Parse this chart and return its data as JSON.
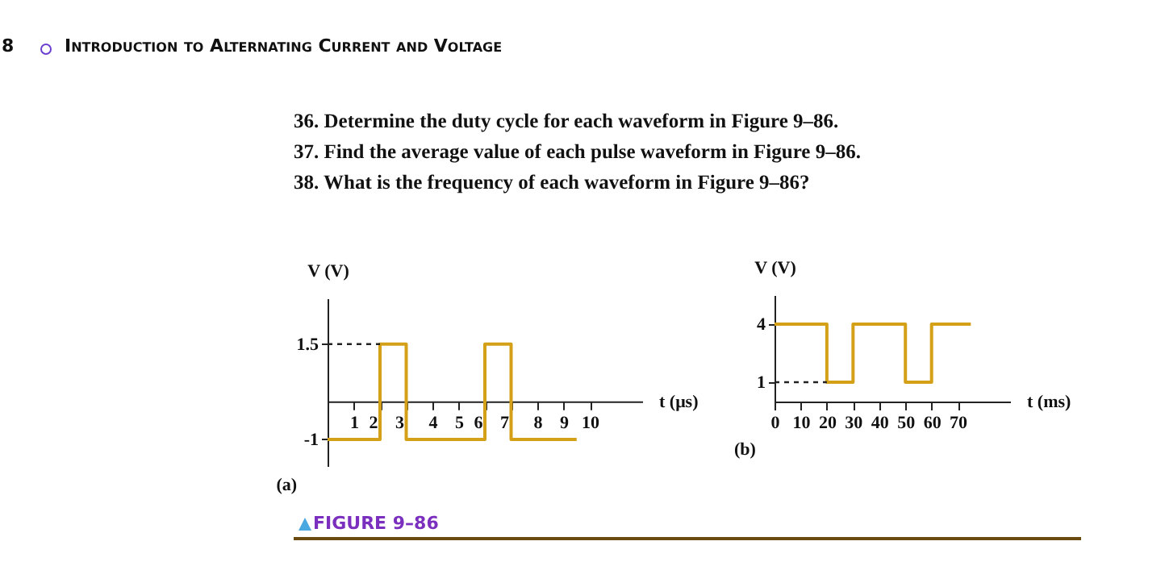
{
  "chart_data": [
    {
      "type": "step",
      "title": "(a)",
      "xlabel": "t (μs)",
      "ylabel": "V (V)",
      "x": [
        0,
        2,
        3,
        6,
        7,
        9.5
      ],
      "series": [
        {
          "color": "#d4a017",
          "values": [
            -1,
            1.5,
            -1,
            1.5,
            -1,
            -1
          ]
        }
      ],
      "xlim": [
        0,
        12
      ],
      "ylim": [
        -1.7,
        2.7
      ],
      "xticks": [
        1,
        2,
        3,
        4,
        5,
        6,
        7,
        8,
        9,
        10
      ],
      "yticks": [
        -1,
        1.5
      ],
      "grid": false,
      "ref_lines": [
        {
          "axis": "y",
          "value": 1.5,
          "color": "#222222",
          "line_style": "dashed"
        }
      ],
      "annotations": [
        "8",
        "Introduction to Alternating Current and Voltage",
        "36. Determine the duty cycle for each waveform in Figure 9–86.",
        "37. Find the average value of each pulse waveform in Figure 9–86.",
        "38. What is the frequency of each waveform in Figure 9–86?",
        "FIGURE 9–86"
      ]
    },
    {
      "type": "step",
      "title": "(b)",
      "xlabel": "t (ms)",
      "ylabel": "V (V)",
      "x": [
        0,
        20,
        30,
        50,
        60,
        75
      ],
      "series": [
        {
          "color": "#d4a017",
          "values": [
            4,
            1,
            4,
            1,
            4,
            4
          ]
        }
      ],
      "xlim": [
        0,
        90
      ],
      "ylim": [
        0,
        5.5
      ],
      "xticks": [
        0,
        10,
        20,
        30,
        40,
        50,
        60,
        70
      ],
      "yticks": [
        1,
        4
      ],
      "grid": false,
      "ref_lines": [
        {
          "axis": "y",
          "value": 1,
          "color": "#222222",
          "line_style": "dashed"
        }
      ]
    }
  ]
}
